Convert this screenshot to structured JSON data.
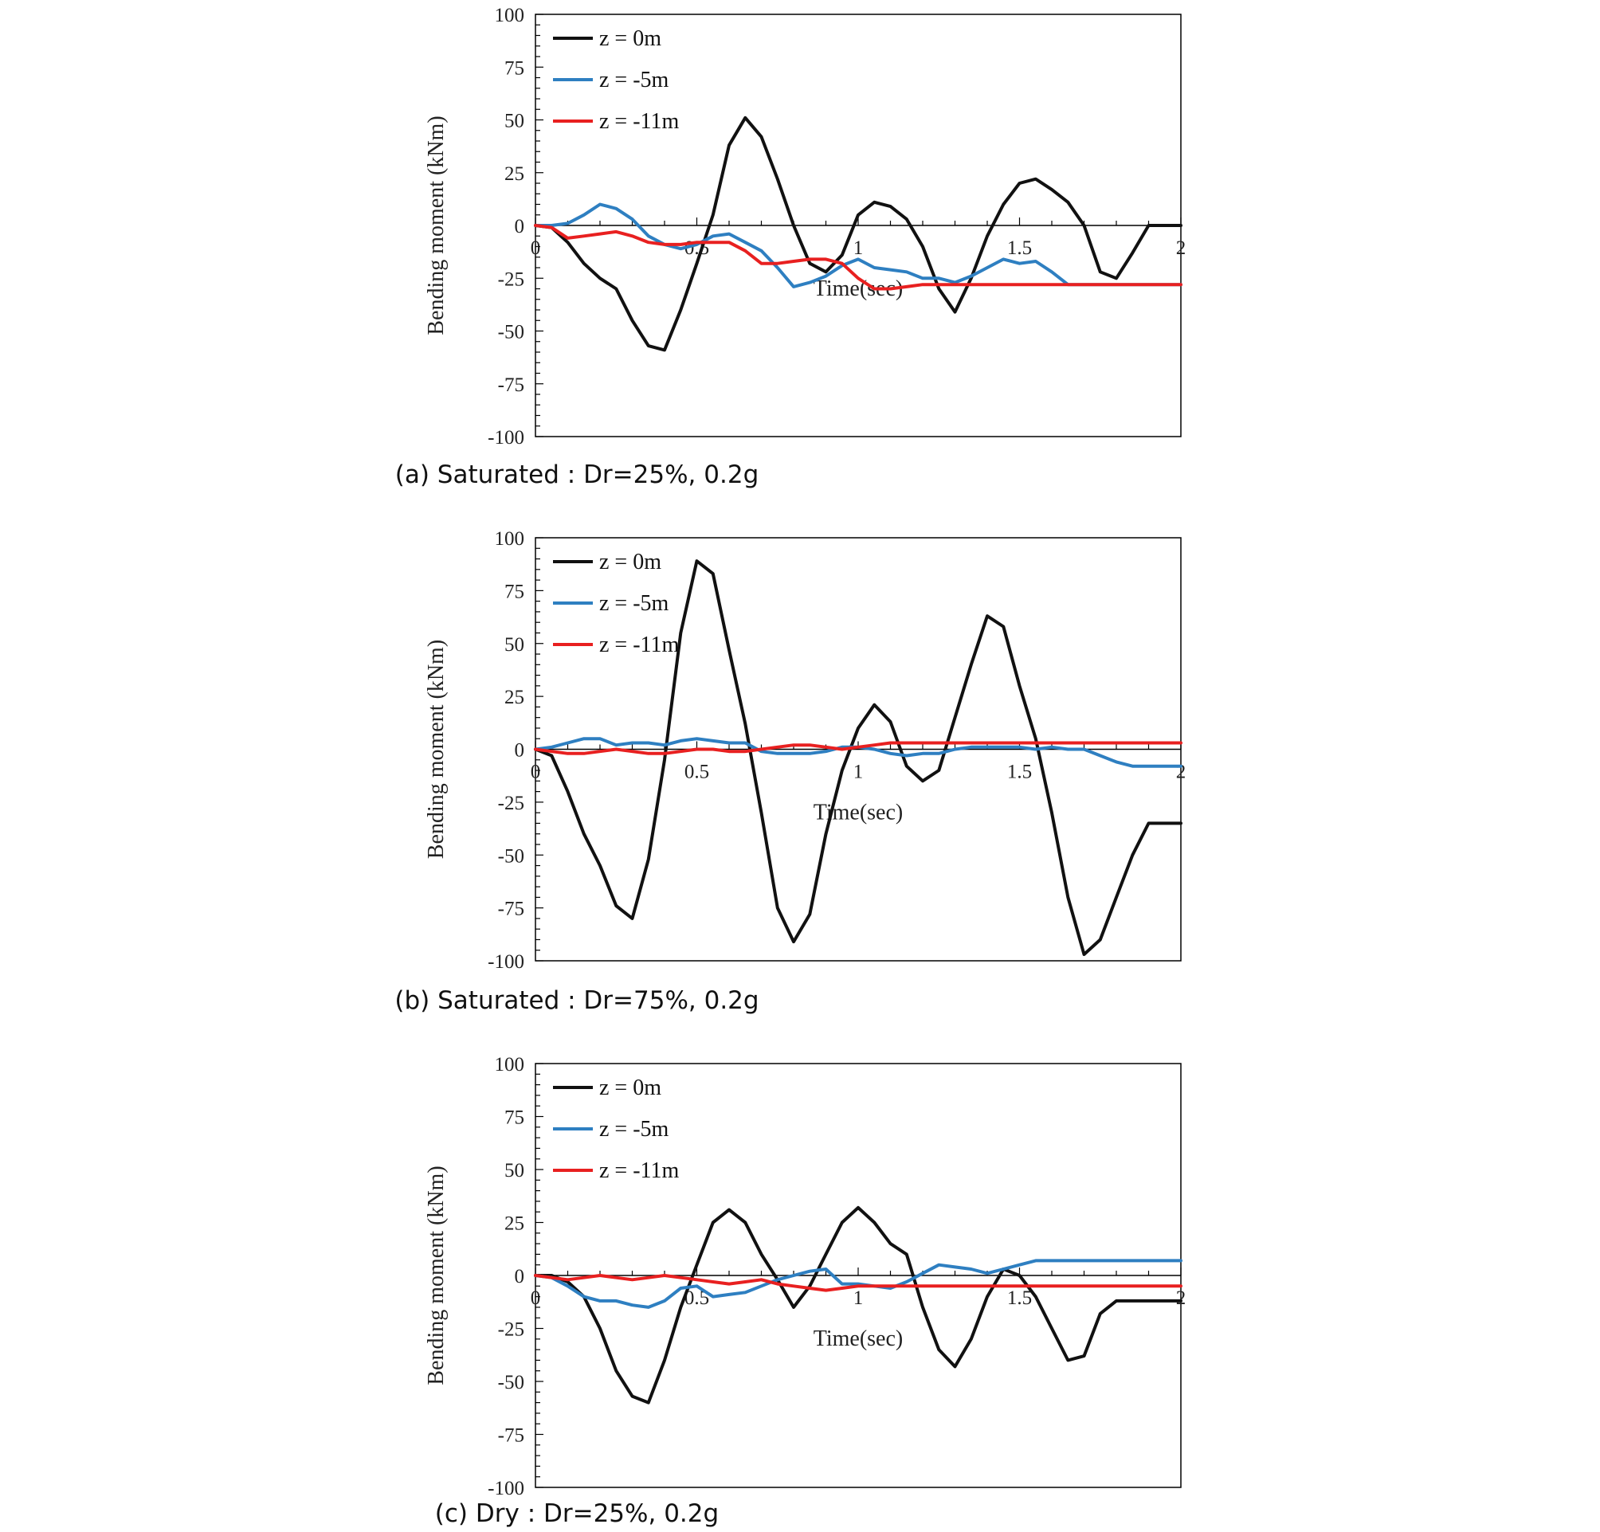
{
  "colors": {
    "z0": "#111111",
    "z5": "#2e7fc1",
    "z11": "#e82020",
    "frame": "#000000"
  },
  "chart_data": [
    {
      "type": "line",
      "caption": "(a) Saturated : Dr=25%, 0.2g",
      "xlabel": "Time(sec)",
      "ylabel": "Bending moment (kNm)",
      "xlim": [
        0,
        2
      ],
      "ylim": [
        -100,
        100
      ],
      "xticks": [
        "0",
        "0.5",
        "1",
        "1.5",
        "2"
      ],
      "yticks": [
        "100",
        "75",
        "50",
        "25",
        "0",
        "-25",
        "-50",
        "-75",
        "-100"
      ],
      "legend_position": "top-left",
      "series": [
        {
          "name": "z = 0m",
          "color": "#111111",
          "x": [
            0,
            0.05,
            0.1,
            0.15,
            0.2,
            0.25,
            0.3,
            0.35,
            0.4,
            0.45,
            0.5,
            0.55,
            0.6,
            0.65,
            0.7,
            0.75,
            0.8,
            0.85,
            0.9,
            0.95,
            1.0,
            1.05,
            1.1,
            1.15,
            1.2,
            1.25,
            1.3,
            1.35,
            1.4,
            1.45,
            1.5,
            1.55,
            1.6,
            1.65,
            1.7,
            1.75,
            1.8,
            1.85,
            1.9,
            1.95,
            2.0
          ],
          "y": [
            0,
            -1,
            -8,
            -18,
            -25,
            -30,
            -45,
            -57,
            -59,
            -40,
            -18,
            5,
            38,
            51,
            42,
            22,
            0,
            -18,
            -22,
            -14,
            5,
            11,
            9,
            3,
            -10,
            -30,
            -41,
            -25,
            -5,
            10,
            20,
            22,
            17,
            11,
            0,
            -22,
            -25,
            -13,
            0,
            0,
            0
          ]
        },
        {
          "name": "z = -5m",
          "color": "#2e7fc1",
          "x": [
            0,
            0.05,
            0.1,
            0.15,
            0.2,
            0.25,
            0.3,
            0.35,
            0.4,
            0.45,
            0.5,
            0.55,
            0.6,
            0.65,
            0.7,
            0.75,
            0.8,
            0.85,
            0.9,
            0.95,
            1.0,
            1.05,
            1.1,
            1.15,
            1.2,
            1.25,
            1.3,
            1.35,
            1.4,
            1.45,
            1.5,
            1.55,
            1.6,
            1.65,
            1.7,
            1.75,
            1.8,
            1.85,
            1.9,
            1.95,
            2.0
          ],
          "y": [
            0,
            0,
            1,
            5,
            10,
            8,
            3,
            -5,
            -9,
            -11,
            -9,
            -5,
            -4,
            -8,
            -12,
            -20,
            -29,
            -27,
            -24,
            -19,
            -16,
            -20,
            -21,
            -22,
            -25,
            -25,
            -27,
            -24,
            -20,
            -16,
            -18,
            -17,
            -22,
            -28,
            -28,
            -28,
            -28,
            -28,
            -28,
            -28,
            -28
          ]
        },
        {
          "name": "z = -11m",
          "color": "#e82020",
          "x": [
            0,
            0.05,
            0.1,
            0.15,
            0.2,
            0.25,
            0.3,
            0.35,
            0.4,
            0.45,
            0.5,
            0.55,
            0.6,
            0.65,
            0.7,
            0.75,
            0.8,
            0.85,
            0.9,
            0.95,
            1.0,
            1.05,
            1.1,
            1.15,
            1.2,
            1.25,
            1.3,
            1.35,
            1.4,
            1.45,
            1.5,
            1.55,
            1.6,
            1.65,
            1.7,
            1.75,
            1.8,
            1.85,
            1.9,
            1.95,
            2.0
          ],
          "y": [
            0,
            -1,
            -6,
            -5,
            -4,
            -3,
            -5,
            -8,
            -9,
            -9,
            -8,
            -8,
            -8,
            -12,
            -18,
            -18,
            -17,
            -16,
            -16,
            -18,
            -25,
            -30,
            -30,
            -29,
            -28,
            -28,
            -28,
            -28,
            -28,
            -28,
            -28,
            -28,
            -28,
            -28,
            -28,
            -28,
            -28,
            -28,
            -28,
            -28,
            -28
          ]
        }
      ]
    },
    {
      "type": "line",
      "caption": "(b) Saturated : Dr=75%, 0.2g",
      "xlabel": "Time(sec)",
      "ylabel": "Bending moment (kNm)",
      "xlim": [
        0,
        2
      ],
      "ylim": [
        -100,
        100
      ],
      "xticks": [
        "0",
        "0.5",
        "1",
        "1.5",
        "2"
      ],
      "yticks": [
        "100",
        "75",
        "50",
        "25",
        "0",
        "-25",
        "-50",
        "-75",
        "-100"
      ],
      "legend_position": "top-left",
      "series": [
        {
          "name": "z = 0m",
          "color": "#111111",
          "x": [
            0,
            0.05,
            0.1,
            0.15,
            0.2,
            0.25,
            0.3,
            0.35,
            0.4,
            0.45,
            0.5,
            0.55,
            0.6,
            0.65,
            0.7,
            0.75,
            0.8,
            0.85,
            0.9,
            0.95,
            1.0,
            1.05,
            1.1,
            1.15,
            1.2,
            1.25,
            1.3,
            1.35,
            1.4,
            1.45,
            1.5,
            1.55,
            1.6,
            1.65,
            1.7,
            1.75,
            1.8,
            1.85,
            1.9,
            1.95,
            2.0
          ],
          "y": [
            0,
            -3,
            -20,
            -40,
            -55,
            -74,
            -80,
            -52,
            -5,
            55,
            89,
            83,
            47,
            12,
            -30,
            -75,
            -91,
            -78,
            -40,
            -10,
            10,
            21,
            13,
            -8,
            -15,
            -10,
            15,
            40,
            63,
            58,
            30,
            5,
            -30,
            -70,
            -97,
            -90,
            -70,
            -50,
            -35,
            -35,
            -35
          ]
        },
        {
          "name": "z = -5m",
          "color": "#2e7fc1",
          "x": [
            0,
            0.05,
            0.1,
            0.15,
            0.2,
            0.25,
            0.3,
            0.35,
            0.4,
            0.45,
            0.5,
            0.55,
            0.6,
            0.65,
            0.7,
            0.75,
            0.8,
            0.85,
            0.9,
            0.95,
            1.0,
            1.05,
            1.1,
            1.15,
            1.2,
            1.25,
            1.3,
            1.35,
            1.4,
            1.45,
            1.5,
            1.55,
            1.6,
            1.65,
            1.7,
            1.75,
            1.8,
            1.85,
            1.9,
            1.95,
            2.0
          ],
          "y": [
            0,
            1,
            3,
            5,
            5,
            2,
            3,
            3,
            2,
            4,
            5,
            4,
            3,
            3,
            -1,
            -2,
            -2,
            -2,
            -1,
            1,
            1,
            0,
            -2,
            -3,
            -2,
            -2,
            0,
            1,
            1,
            1,
            1,
            0,
            1,
            0,
            0,
            -3,
            -6,
            -8,
            -8,
            -8,
            -8
          ]
        },
        {
          "name": "z = -11m",
          "color": "#e82020",
          "x": [
            0,
            0.05,
            0.1,
            0.15,
            0.2,
            0.25,
            0.3,
            0.35,
            0.4,
            0.45,
            0.5,
            0.55,
            0.6,
            0.65,
            0.7,
            0.75,
            0.8,
            0.85,
            0.9,
            0.95,
            1.0,
            1.05,
            1.1,
            1.15,
            1.2,
            1.25,
            1.3,
            1.35,
            1.4,
            1.45,
            1.5,
            1.55,
            1.6,
            1.65,
            1.7,
            1.75,
            1.8,
            1.85,
            1.9,
            1.95,
            2.0
          ],
          "y": [
            0,
            -1,
            -2,
            -2,
            -1,
            0,
            -1,
            -2,
            -2,
            -1,
            0,
            0,
            -1,
            -1,
            0,
            1,
            2,
            2,
            1,
            0,
            1,
            2,
            3,
            3,
            3,
            3,
            3,
            3,
            3,
            3,
            3,
            3,
            3,
            3,
            3,
            3,
            3,
            3,
            3,
            3,
            3
          ]
        }
      ]
    },
    {
      "type": "line",
      "caption": "(c) Dry : Dr=25%, 0.2g",
      "xlabel": "Time(sec)",
      "ylabel": "Bending moment (kNm)",
      "xlim": [
        0,
        2
      ],
      "ylim": [
        -100,
        100
      ],
      "xticks": [
        "0",
        "0.5",
        "1",
        "1.5",
        "2"
      ],
      "yticks": [
        "100",
        "75",
        "50",
        "25",
        "0",
        "-25",
        "-50",
        "-75",
        "-100"
      ],
      "legend_position": "top-left",
      "series": [
        {
          "name": "z = 0m",
          "color": "#111111",
          "x": [
            0,
            0.05,
            0.1,
            0.15,
            0.2,
            0.25,
            0.3,
            0.35,
            0.4,
            0.45,
            0.5,
            0.55,
            0.6,
            0.65,
            0.7,
            0.75,
            0.8,
            0.85,
            0.9,
            0.95,
            1.0,
            1.05,
            1.1,
            1.15,
            1.2,
            1.25,
            1.3,
            1.35,
            1.4,
            1.45,
            1.5,
            1.55,
            1.6,
            1.65,
            1.7,
            1.75,
            1.8,
            1.85,
            1.9,
            1.95,
            2.0
          ],
          "y": [
            0,
            0,
            -3,
            -10,
            -25,
            -45,
            -57,
            -60,
            -40,
            -15,
            5,
            25,
            31,
            25,
            10,
            -2,
            -15,
            -5,
            10,
            25,
            32,
            25,
            15,
            10,
            -15,
            -35,
            -43,
            -30,
            -10,
            3,
            0,
            -10,
            -25,
            -40,
            -38,
            -18,
            -12,
            -12,
            -12,
            -12,
            -12
          ]
        },
        {
          "name": "z = -5m",
          "color": "#2e7fc1",
          "x": [
            0,
            0.05,
            0.1,
            0.15,
            0.2,
            0.25,
            0.3,
            0.35,
            0.4,
            0.45,
            0.5,
            0.55,
            0.6,
            0.65,
            0.7,
            0.75,
            0.8,
            0.85,
            0.9,
            0.95,
            1.0,
            1.05,
            1.1,
            1.15,
            1.2,
            1.25,
            1.3,
            1.35,
            1.4,
            1.45,
            1.5,
            1.55,
            1.6,
            1.65,
            1.7,
            1.75,
            1.8,
            1.85,
            1.9,
            1.95,
            2.0
          ],
          "y": [
            0,
            -1,
            -5,
            -10,
            -12,
            -12,
            -14,
            -15,
            -12,
            -6,
            -5,
            -10,
            -9,
            -8,
            -5,
            -2,
            0,
            2,
            3,
            -4,
            -4,
            -5,
            -6,
            -3,
            1,
            5,
            4,
            3,
            1,
            3,
            5,
            7,
            7,
            7,
            7,
            7,
            7,
            7,
            7,
            7,
            7
          ]
        },
        {
          "name": "z = -11m",
          "color": "#e82020",
          "x": [
            0,
            0.05,
            0.1,
            0.15,
            0.2,
            0.25,
            0.3,
            0.35,
            0.4,
            0.45,
            0.5,
            0.55,
            0.6,
            0.65,
            0.7,
            0.75,
            0.8,
            0.85,
            0.9,
            0.95,
            1.0,
            1.05,
            1.1,
            1.15,
            1.2,
            1.25,
            1.3,
            1.35,
            1.4,
            1.45,
            1.5,
            1.55,
            1.6,
            1.65,
            1.7,
            1.75,
            1.8,
            1.85,
            1.9,
            1.95,
            2.0
          ],
          "y": [
            0,
            -1,
            -2,
            -1,
            0,
            -1,
            -2,
            -1,
            0,
            -1,
            -2,
            -3,
            -4,
            -3,
            -2,
            -4,
            -5,
            -6,
            -7,
            -6,
            -5,
            -5,
            -5,
            -5,
            -5,
            -5,
            -5,
            -5,
            -5,
            -5,
            -5,
            -5,
            -5,
            -5,
            -5,
            -5,
            -5,
            -5,
            -5,
            -5,
            -5
          ]
        }
      ]
    }
  ]
}
